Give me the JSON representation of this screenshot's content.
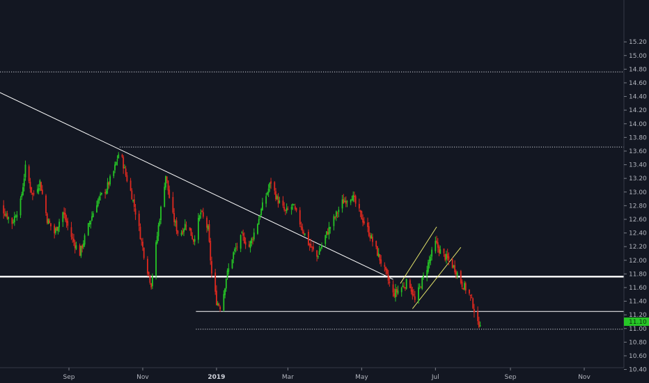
{
  "chart_data": {
    "type": "candlestick",
    "y_axis": {
      "min": 10.3,
      "max": 15.3,
      "ticks": [
        "15.20",
        "15.00",
        "14.80",
        "14.60",
        "14.40",
        "14.20",
        "14.00",
        "13.80",
        "13.60",
        "13.40",
        "13.20",
        "13.00",
        "12.80",
        "12.60",
        "12.40",
        "12.20",
        "12.00",
        "11.80",
        "11.60",
        "11.40",
        "11.20",
        "11.00",
        "10.80",
        "10.60",
        "10.40"
      ]
    },
    "x_axis": {
      "start_date": "2018-07-01",
      "end_date": "2019-12-01",
      "tick_labels": [
        {
          "label": "Sep",
          "date": "2018-09-01",
          "bold": false
        },
        {
          "label": "Nov",
          "date": "2018-11-01",
          "bold": false
        },
        {
          "label": "2019",
          "date": "2019-01-01",
          "bold": true
        },
        {
          "label": "Mar",
          "date": "2019-03-01",
          "bold": false
        },
        {
          "label": "May",
          "date": "2019-05-01",
          "bold": false
        },
        {
          "label": "Jul",
          "date": "2019-07-01",
          "bold": false
        },
        {
          "label": "Sep",
          "date": "2019-09-01",
          "bold": false
        },
        {
          "label": "Nov",
          "date": "2019-11-01",
          "bold": false
        }
      ]
    },
    "last_price": {
      "value": 11.1,
      "label": "11.10",
      "color": "#26c626"
    },
    "colors": {
      "up": "#26c626",
      "down": "#e0291f",
      "background": "#131722",
      "axis_text": "#b2b5be"
    },
    "price_path": [
      [
        "2018-07-01",
        12.95
      ],
      [
        "2018-07-08",
        12.75
      ],
      [
        "2018-07-16",
        12.55
      ],
      [
        "2018-07-23",
        12.85
      ],
      [
        "2018-07-27",
        13.35
      ],
      [
        "2018-08-02",
        12.95
      ],
      [
        "2018-08-08",
        13.15
      ],
      [
        "2018-08-14",
        12.6
      ],
      [
        "2018-08-20",
        12.4
      ],
      [
        "2018-08-27",
        12.7
      ],
      [
        "2018-09-04",
        12.3
      ],
      [
        "2018-09-10",
        12.1
      ],
      [
        "2018-09-18",
        12.55
      ],
      [
        "2018-09-24",
        12.85
      ],
      [
        "2018-10-02",
        13.05
      ],
      [
        "2018-10-08",
        13.3
      ],
      [
        "2018-10-13",
        13.62
      ],
      [
        "2018-10-18",
        13.25
      ],
      [
        "2018-10-23",
        12.95
      ],
      [
        "2018-10-28",
        12.55
      ],
      [
        "2018-11-03",
        12.0
      ],
      [
        "2018-11-08",
        11.65
      ],
      [
        "2018-11-14",
        12.5
      ],
      [
        "2018-11-20",
        13.25
      ],
      [
        "2018-11-25",
        12.7
      ],
      [
        "2018-12-01",
        12.35
      ],
      [
        "2018-12-07",
        12.55
      ],
      [
        "2018-12-13",
        12.3
      ],
      [
        "2018-12-19",
        12.7
      ],
      [
        "2018-12-25",
        12.45
      ],
      [
        "2018-12-28",
        11.8
      ],
      [
        "2019-01-01",
        11.4
      ],
      [
        "2019-01-05",
        11.3
      ],
      [
        "2019-01-09",
        11.75
      ],
      [
        "2019-01-15",
        12.1
      ],
      [
        "2019-01-22",
        12.35
      ],
      [
        "2019-01-28",
        12.2
      ],
      [
        "2019-02-03",
        12.5
      ],
      [
        "2019-02-09",
        12.85
      ],
      [
        "2019-02-15",
        13.15
      ],
      [
        "2019-02-20",
        12.9
      ],
      [
        "2019-02-27",
        12.7
      ],
      [
        "2019-03-05",
        12.8
      ],
      [
        "2019-03-11",
        12.55
      ],
      [
        "2019-03-18",
        12.25
      ],
      [
        "2019-03-25",
        12.05
      ],
      [
        "2019-04-01",
        12.35
      ],
      [
        "2019-04-08",
        12.6
      ],
      [
        "2019-04-15",
        12.85
      ],
      [
        "2019-04-23",
        12.95
      ],
      [
        "2019-04-29",
        12.7
      ],
      [
        "2019-05-06",
        12.45
      ],
      [
        "2019-05-13",
        12.15
      ],
      [
        "2019-05-20",
        11.85
      ],
      [
        "2019-05-27",
        11.5
      ],
      [
        "2019-06-03",
        11.6
      ],
      [
        "2019-06-09",
        11.7
      ],
      [
        "2019-06-14",
        11.4
      ],
      [
        "2019-06-19",
        11.65
      ],
      [
        "2019-06-25",
        11.95
      ],
      [
        "2019-07-01",
        12.25
      ],
      [
        "2019-07-06",
        12.1
      ],
      [
        "2019-07-12",
        12.0
      ],
      [
        "2019-07-18",
        11.85
      ],
      [
        "2019-07-23",
        11.65
      ],
      [
        "2019-07-28",
        11.55
      ],
      [
        "2019-08-01",
        11.35
      ],
      [
        "2019-08-05",
        11.05
      ],
      [
        "2019-08-07",
        11.1
      ]
    ],
    "drawings": [
      {
        "type": "trendline",
        "from": [
          "2018-07-01",
          14.5
        ],
        "to": [
          "2019-05-27",
          11.72
        ],
        "color": "#ffffff",
        "width": 1
      },
      {
        "type": "horizontal",
        "value": 11.76,
        "from_date": "2018-07-01",
        "color": "#ffffff",
        "width": 2.5,
        "style": "solid"
      },
      {
        "type": "horizontal",
        "value": 14.76,
        "from_date": "2018-07-01",
        "color": "#d1d4dc",
        "width": 1,
        "style": "dotted"
      },
      {
        "type": "horizontal",
        "value": 13.66,
        "from_date": "2018-10-13",
        "color": "#d1d4dc",
        "width": 1,
        "style": "dotted"
      },
      {
        "type": "horizontal",
        "value": 11.25,
        "from_date": "2018-12-15",
        "color": "#ffffff",
        "width": 1,
        "style": "solid"
      },
      {
        "type": "horizontal",
        "value": 10.99,
        "from_date": "2018-12-15",
        "color": "#d1d4dc",
        "width": 1,
        "style": "dotted"
      },
      {
        "type": "trendline",
        "from": [
          "2019-06-02",
          11.66
        ],
        "to": [
          "2019-07-02",
          12.49
        ],
        "color": "#e3e36a",
        "width": 1
      },
      {
        "type": "trendline",
        "from": [
          "2019-06-12",
          11.29
        ],
        "to": [
          "2019-07-22",
          12.19
        ],
        "color": "#e3e36a",
        "width": 1
      }
    ]
  }
}
